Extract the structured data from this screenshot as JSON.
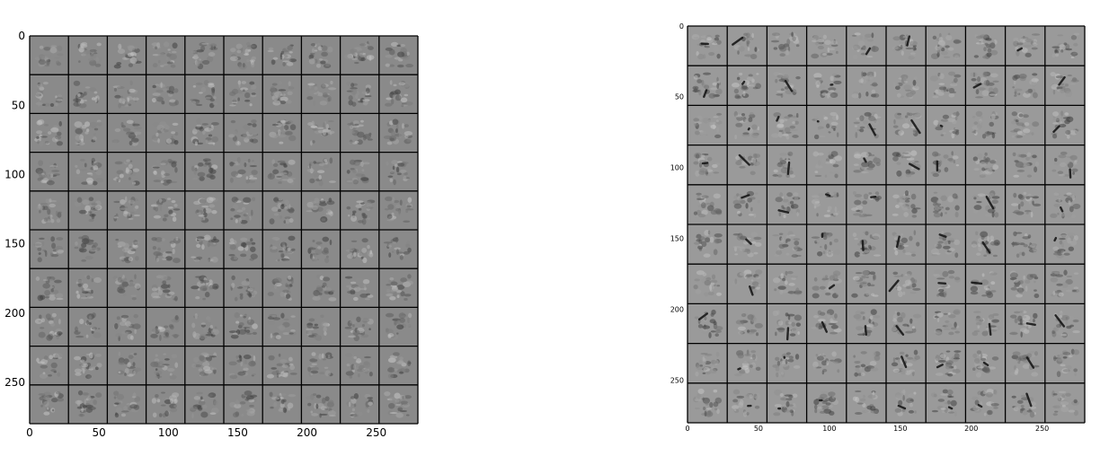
{
  "panels": [
    {
      "id": "left",
      "grid_rows": 10,
      "grid_cols": 10,
      "tile_color": "#8a8a8a",
      "line_color": "#000000",
      "x_ticks": [
        "0",
        "50",
        "100",
        "150",
        "200",
        "250"
      ],
      "y_ticks": [
        "0",
        "50",
        "100",
        "150",
        "200",
        "250"
      ],
      "axis_max": 280
    },
    {
      "id": "right",
      "grid_rows": 10,
      "grid_cols": 10,
      "tile_color": "#9a9a9a",
      "line_color": "#000000",
      "x_ticks": [
        "0",
        "50",
        "100",
        "150",
        "200",
        "250"
      ],
      "y_ticks": [
        "0",
        "50",
        "100",
        "150",
        "200",
        "250"
      ],
      "axis_max": 280
    }
  ]
}
